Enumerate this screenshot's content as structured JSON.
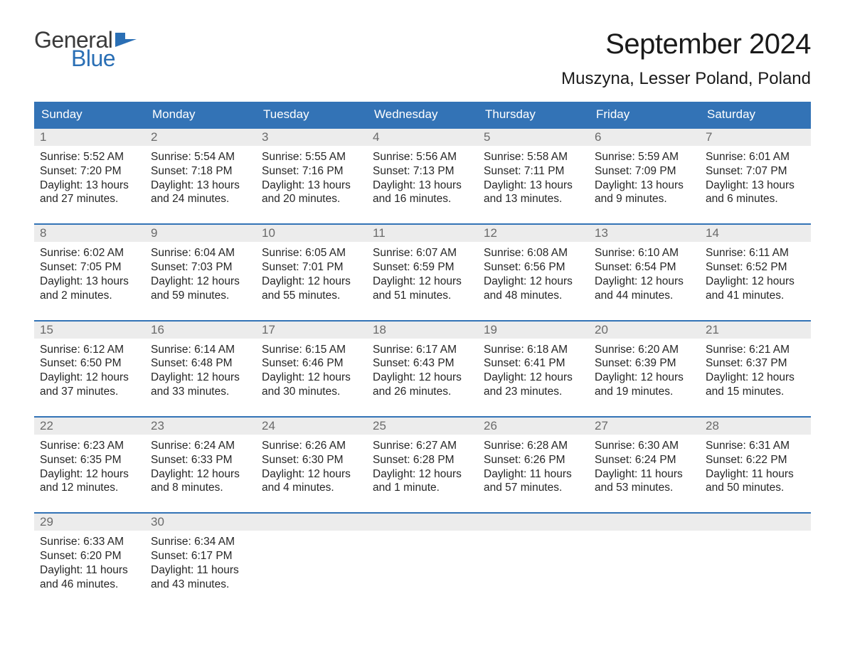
{
  "logo": {
    "text_general": "General",
    "text_blue": "Blue",
    "flag_color": "#2a6fb5"
  },
  "title": "September 2024",
  "location": "Muszyna, Lesser Poland, Poland",
  "colors": {
    "header_bg": "#3373b6",
    "header_text": "#ffffff",
    "week_border": "#3373b6",
    "daynum_bg": "#ececec",
    "daynum_text": "#6a6a6a",
    "body_text": "#262626",
    "background": "#ffffff"
  },
  "typography": {
    "title_fontsize": 40,
    "location_fontsize": 24,
    "dow_fontsize": 17,
    "daynum_fontsize": 17,
    "cell_fontsize": 15.5
  },
  "days_of_week": [
    "Sunday",
    "Monday",
    "Tuesday",
    "Wednesday",
    "Thursday",
    "Friday",
    "Saturday"
  ],
  "sunrise_label": "Sunrise",
  "sunset_label": "Sunset",
  "daylight_label": "Daylight",
  "weeks": [
    [
      {
        "n": "1",
        "sunrise": "5:52 AM",
        "sunset": "7:20 PM",
        "daylight": "13 hours and 27 minutes."
      },
      {
        "n": "2",
        "sunrise": "5:54 AM",
        "sunset": "7:18 PM",
        "daylight": "13 hours and 24 minutes."
      },
      {
        "n": "3",
        "sunrise": "5:55 AM",
        "sunset": "7:16 PM",
        "daylight": "13 hours and 20 minutes."
      },
      {
        "n": "4",
        "sunrise": "5:56 AM",
        "sunset": "7:13 PM",
        "daylight": "13 hours and 16 minutes."
      },
      {
        "n": "5",
        "sunrise": "5:58 AM",
        "sunset": "7:11 PM",
        "daylight": "13 hours and 13 minutes."
      },
      {
        "n": "6",
        "sunrise": "5:59 AM",
        "sunset": "7:09 PM",
        "daylight": "13 hours and 9 minutes."
      },
      {
        "n": "7",
        "sunrise": "6:01 AM",
        "sunset": "7:07 PM",
        "daylight": "13 hours and 6 minutes."
      }
    ],
    [
      {
        "n": "8",
        "sunrise": "6:02 AM",
        "sunset": "7:05 PM",
        "daylight": "13 hours and 2 minutes."
      },
      {
        "n": "9",
        "sunrise": "6:04 AM",
        "sunset": "7:03 PM",
        "daylight": "12 hours and 59 minutes."
      },
      {
        "n": "10",
        "sunrise": "6:05 AM",
        "sunset": "7:01 PM",
        "daylight": "12 hours and 55 minutes."
      },
      {
        "n": "11",
        "sunrise": "6:07 AM",
        "sunset": "6:59 PM",
        "daylight": "12 hours and 51 minutes."
      },
      {
        "n": "12",
        "sunrise": "6:08 AM",
        "sunset": "6:56 PM",
        "daylight": "12 hours and 48 minutes."
      },
      {
        "n": "13",
        "sunrise": "6:10 AM",
        "sunset": "6:54 PM",
        "daylight": "12 hours and 44 minutes."
      },
      {
        "n": "14",
        "sunrise": "6:11 AM",
        "sunset": "6:52 PM",
        "daylight": "12 hours and 41 minutes."
      }
    ],
    [
      {
        "n": "15",
        "sunrise": "6:12 AM",
        "sunset": "6:50 PM",
        "daylight": "12 hours and 37 minutes."
      },
      {
        "n": "16",
        "sunrise": "6:14 AM",
        "sunset": "6:48 PM",
        "daylight": "12 hours and 33 minutes."
      },
      {
        "n": "17",
        "sunrise": "6:15 AM",
        "sunset": "6:46 PM",
        "daylight": "12 hours and 30 minutes."
      },
      {
        "n": "18",
        "sunrise": "6:17 AM",
        "sunset": "6:43 PM",
        "daylight": "12 hours and 26 minutes."
      },
      {
        "n": "19",
        "sunrise": "6:18 AM",
        "sunset": "6:41 PM",
        "daylight": "12 hours and 23 minutes."
      },
      {
        "n": "20",
        "sunrise": "6:20 AM",
        "sunset": "6:39 PM",
        "daylight": "12 hours and 19 minutes."
      },
      {
        "n": "21",
        "sunrise": "6:21 AM",
        "sunset": "6:37 PM",
        "daylight": "12 hours and 15 minutes."
      }
    ],
    [
      {
        "n": "22",
        "sunrise": "6:23 AM",
        "sunset": "6:35 PM",
        "daylight": "12 hours and 12 minutes."
      },
      {
        "n": "23",
        "sunrise": "6:24 AM",
        "sunset": "6:33 PM",
        "daylight": "12 hours and 8 minutes."
      },
      {
        "n": "24",
        "sunrise": "6:26 AM",
        "sunset": "6:30 PM",
        "daylight": "12 hours and 4 minutes."
      },
      {
        "n": "25",
        "sunrise": "6:27 AM",
        "sunset": "6:28 PM",
        "daylight": "12 hours and 1 minute."
      },
      {
        "n": "26",
        "sunrise": "6:28 AM",
        "sunset": "6:26 PM",
        "daylight": "11 hours and 57 minutes."
      },
      {
        "n": "27",
        "sunrise": "6:30 AM",
        "sunset": "6:24 PM",
        "daylight": "11 hours and 53 minutes."
      },
      {
        "n": "28",
        "sunrise": "6:31 AM",
        "sunset": "6:22 PM",
        "daylight": "11 hours and 50 minutes."
      }
    ],
    [
      {
        "n": "29",
        "sunrise": "6:33 AM",
        "sunset": "6:20 PM",
        "daylight": "11 hours and 46 minutes."
      },
      {
        "n": "30",
        "sunrise": "6:34 AM",
        "sunset": "6:17 PM",
        "daylight": "11 hours and 43 minutes."
      },
      null,
      null,
      null,
      null,
      null
    ]
  ]
}
